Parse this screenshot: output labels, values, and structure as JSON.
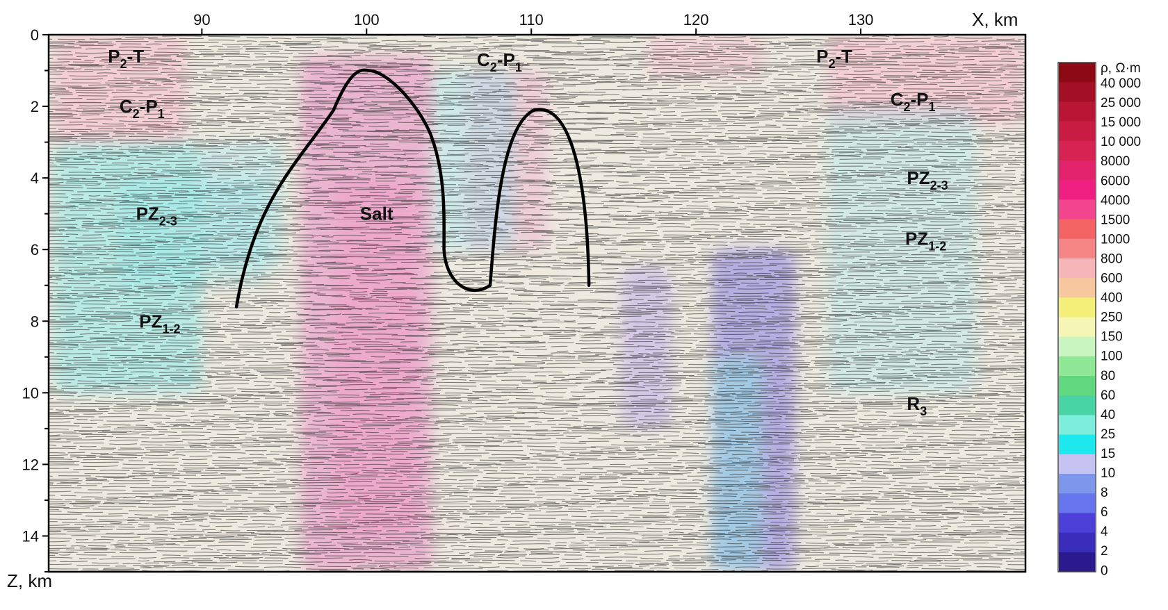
{
  "x_axis": {
    "unit_label": "X, km",
    "ticks": [
      {
        "value": 90,
        "label": "90"
      },
      {
        "value": 100,
        "label": "100"
      },
      {
        "value": 110,
        "label": "110"
      },
      {
        "value": 120,
        "label": "120"
      },
      {
        "value": 130,
        "label": "130"
      }
    ],
    "range": [
      80.7,
      140.0
    ]
  },
  "z_axis": {
    "unit_label": "Z, km",
    "ticks": [
      {
        "value": 0,
        "label": "0"
      },
      {
        "value": 2,
        "label": "2"
      },
      {
        "value": 4,
        "label": "4"
      },
      {
        "value": 6,
        "label": "6"
      },
      {
        "value": 8,
        "label": "8"
      },
      {
        "value": 10,
        "label": "10"
      },
      {
        "value": 12,
        "label": "12"
      },
      {
        "value": 14,
        "label": "14"
      }
    ],
    "range": [
      0,
      15
    ]
  },
  "layer_labels": [
    {
      "id": "p2t-left",
      "main": "P",
      "sub": "2",
      "rest": "-T",
      "x": 84.3,
      "z": 0.6
    },
    {
      "id": "c2p1-left",
      "main": "C",
      "sub": "2",
      "mid": "-P",
      "sub2": "1",
      "x": 85.0,
      "z": 2.0
    },
    {
      "id": "pz23-left",
      "main": "PZ",
      "sub": "2-3",
      "x": 86.0,
      "z": 5.0
    },
    {
      "id": "pz12-left",
      "main": "PZ",
      "sub": "1-2",
      "x": 86.2,
      "z": 8.0
    },
    {
      "id": "salt",
      "main": "Salt",
      "x": 99.6,
      "z": 5.0
    },
    {
      "id": "c2p1-top",
      "main": "C",
      "sub": "2",
      "mid": "-P",
      "sub2": "1",
      "x": 106.7,
      "z": 0.7
    },
    {
      "id": "p2t-right",
      "main": "P",
      "sub": "2",
      "rest": "-T",
      "x": 127.3,
      "z": 0.6
    },
    {
      "id": "c2p1-right",
      "main": "C",
      "sub": "2",
      "mid": "-P",
      "sub2": "1",
      "x": 131.8,
      "z": 1.8
    },
    {
      "id": "pz23-right",
      "main": "PZ",
      "sub": "2-3",
      "x": 132.8,
      "z": 4.0
    },
    {
      "id": "pz12-right",
      "main": "PZ",
      "sub": "1-2",
      "x": 132.7,
      "z": 5.7
    },
    {
      "id": "r3",
      "main": "R",
      "sub": "3",
      "x": 132.8,
      "z": 10.3
    }
  ],
  "salt_boundary": {
    "dome_left_peak_x": 100.1,
    "dome_left_peak_z": 1.0,
    "dome_right_peak_x": 110.2,
    "dome_right_peak_z": 2.1
  },
  "colorbar": {
    "title": "ρ, Ω·m",
    "labels": [
      "40 000",
      "25 000",
      "15 000",
      "10 000",
      "8000",
      "6000",
      "4000",
      "1500",
      "1000",
      "800",
      "600",
      "400",
      "250",
      "150",
      "100",
      "80",
      "60",
      "40",
      "25",
      "15",
      "10",
      "8",
      "6",
      "4",
      "2",
      "0"
    ],
    "colors": [
      "#8b0a14",
      "#a31025",
      "#b81634",
      "#c81c43",
      "#d62352",
      "#e2226a",
      "#ee1f80",
      "#f4468f",
      "#f46464",
      "#f58585",
      "#f6b5b9",
      "#f7c7a0",
      "#f4ef78",
      "#f5f5b5",
      "#c8f5c0",
      "#8fe895",
      "#5fd880",
      "#48d4a4",
      "#7eeedc",
      "#1de8ee",
      "#c6c3f3",
      "#7d97ea",
      "#6675ee",
      "#4d40d8",
      "#3a2dbb",
      "#2a1a8e"
    ]
  },
  "anomalies": {
    "high_resistivity_colors": [
      "#e88bc1",
      "#f19bc8",
      "#f7b7c9"
    ],
    "low_resistivity_colors": [
      "#8ee9e9",
      "#9fe8f2",
      "#b8a6ea",
      "#8f86e0"
    ]
  }
}
